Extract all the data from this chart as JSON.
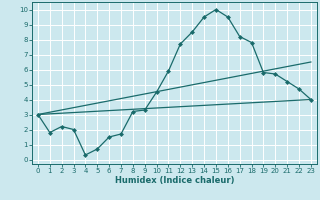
{
  "title": "",
  "xlabel": "Humidex (Indice chaleur)",
  "ylabel": "",
  "bg_color": "#cce8ee",
  "grid_color": "#ffffff",
  "line_color": "#1a6b6b",
  "xlim": [
    -0.5,
    23.5
  ],
  "ylim": [
    -0.3,
    10.5
  ],
  "xticks": [
    0,
    1,
    2,
    3,
    4,
    5,
    6,
    7,
    8,
    9,
    10,
    11,
    12,
    13,
    14,
    15,
    16,
    17,
    18,
    19,
    20,
    21,
    22,
    23
  ],
  "yticks": [
    0,
    1,
    2,
    3,
    4,
    5,
    6,
    7,
    8,
    9,
    10
  ],
  "curve1_x": [
    0,
    1,
    2,
    3,
    4,
    5,
    6,
    7,
    8,
    9,
    10,
    11,
    12,
    13,
    14,
    15,
    16,
    17,
    18,
    19,
    20,
    21,
    22,
    23
  ],
  "curve1_y": [
    3.0,
    1.8,
    2.2,
    2.0,
    0.3,
    0.7,
    1.5,
    1.7,
    3.2,
    3.3,
    4.5,
    5.9,
    7.7,
    8.5,
    9.5,
    10.0,
    9.5,
    8.2,
    7.8,
    5.8,
    5.7,
    5.2,
    4.7,
    4.0
  ],
  "line2_x": [
    0,
    23
  ],
  "line2_y": [
    3.0,
    6.5
  ],
  "line3_x": [
    0,
    23
  ],
  "line3_y": [
    3.0,
    4.0
  ],
  "xlabel_fontsize": 6.0,
  "tick_fontsize": 5.0
}
